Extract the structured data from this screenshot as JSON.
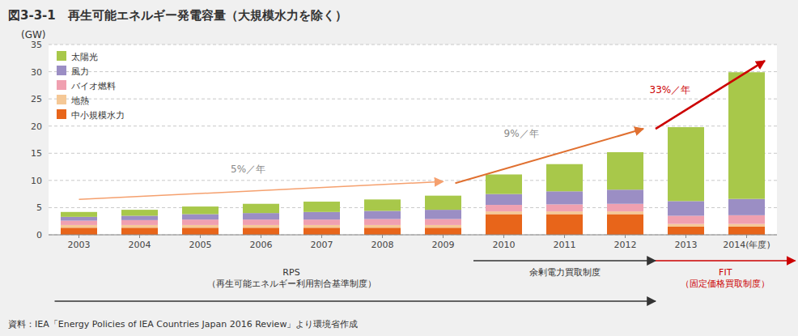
{
  "chart_data": {
    "type": "bar",
    "stacked": true,
    "title": "図3-3-1　再生可能エネルギー発電容量（大規模水力を除く）",
    "ylabel": "(GW)",
    "categories": [
      "2003",
      "2004",
      "2005",
      "2006",
      "2007",
      "2008",
      "2009",
      "2010",
      "2011",
      "2012",
      "2013",
      "2014(年度)"
    ],
    "series": [
      {
        "name": "中小規模水力",
        "color": "#e8651a",
        "values": [
          1.3,
          1.3,
          1.3,
          1.3,
          1.3,
          1.3,
          1.3,
          3.8,
          3.8,
          3.8,
          1.5,
          1.5
        ]
      },
      {
        "name": "地熱",
        "color": "#f5c896",
        "values": [
          0.5,
          0.5,
          0.5,
          0.5,
          0.5,
          0.5,
          0.5,
          0.5,
          0.5,
          0.5,
          0.5,
          0.5
        ]
      },
      {
        "name": "バイオ燃料",
        "color": "#f0a0b0",
        "values": [
          0.8,
          0.9,
          1.0,
          1.0,
          1.0,
          1.1,
          1.1,
          1.2,
          1.3,
          1.4,
          1.5,
          1.6
        ]
      },
      {
        "name": "風力",
        "color": "#9b8ec4",
        "values": [
          0.7,
          0.8,
          1.0,
          1.2,
          1.4,
          1.5,
          1.7,
          2.0,
          2.4,
          2.6,
          2.7,
          3.0
        ]
      },
      {
        "name": "太陽光",
        "color": "#a8c84a",
        "values": [
          0.9,
          1.1,
          1.4,
          1.7,
          1.9,
          2.1,
          2.6,
          3.6,
          5.0,
          6.9,
          13.6,
          23.3
        ]
      }
    ],
    "ylim": [
      0,
      35
    ],
    "yticks": [
      0,
      5,
      10,
      15,
      20,
      25,
      30,
      35
    ],
    "grid": true,
    "legend": "upper left",
    "annotations": [
      "5%／年",
      "9%／年",
      "33%／年",
      "RPS\n（再生可能エネルギー利用割合基準制度）",
      "余剰電力買取制度",
      "FIT\n（固定価格買取制度）",
      "資料：IEA「Energy Policies of IEA Countries Japan 2016 Review」より環境省作成"
    ]
  }
}
